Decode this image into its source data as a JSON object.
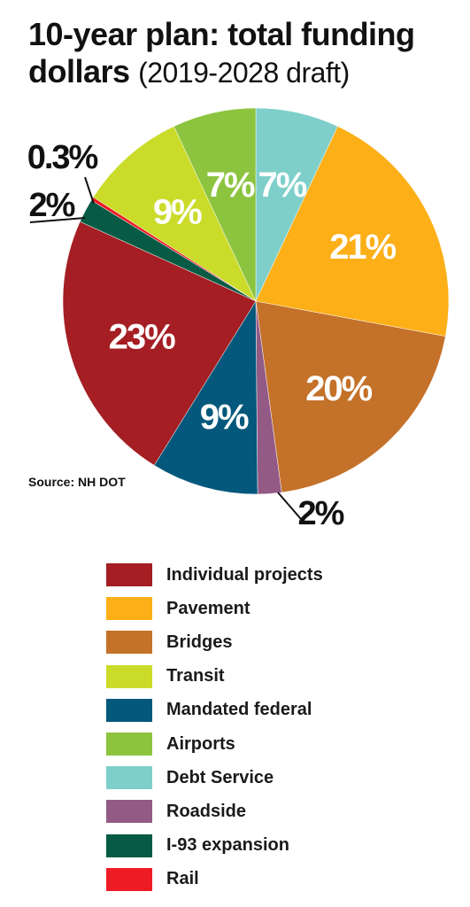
{
  "header": {
    "title_main": "10-year plan: total funding dollars",
    "title_sub": "(2019-2028 draft)"
  },
  "source": "Source: NH DOT",
  "chart_data": {
    "type": "pie",
    "title": "10-year plan: total funding dollars (2019-2028 draft)",
    "slices": [
      {
        "label": "Debt Service",
        "value": 7,
        "display": "7%",
        "color": "#7ecfca"
      },
      {
        "label": "Pavement",
        "value": 21,
        "display": "21%",
        "color": "#fcaf17"
      },
      {
        "label": "Bridges",
        "value": 20,
        "display": "20%",
        "color": "#c47129"
      },
      {
        "label": "Roadside",
        "value": 2,
        "display": "2%",
        "color": "#935a86"
      },
      {
        "label": "Mandated federal",
        "value": 9,
        "display": "9%",
        "color": "#04587c"
      },
      {
        "label": "Individual projects",
        "value": 23,
        "display": "23%",
        "color": "#a41e23"
      },
      {
        "label": "I-93 expansion",
        "value": 2,
        "display": "2%",
        "color": "#075b45"
      },
      {
        "label": "Rail",
        "value": 0.3,
        "display": "0.3%",
        "color": "#ed1c24"
      },
      {
        "label": "Transit",
        "value": 9,
        "display": "9%",
        "color": "#cbdb2a"
      },
      {
        "label": "Airports",
        "value": 7,
        "display": "7%",
        "color": "#8cc43f"
      }
    ],
    "legend": {
      "position": "bottom",
      "items": [
        {
          "label": "Individual projects",
          "color": "#a41e23"
        },
        {
          "label": "Pavement",
          "color": "#fcaf17"
        },
        {
          "label": "Bridges",
          "color": "#c47129"
        },
        {
          "label": "Transit",
          "color": "#cbdb2a"
        },
        {
          "label": "Mandated federal",
          "color": "#04587c"
        },
        {
          "label": "Airports",
          "color": "#8cc43f"
        },
        {
          "label": "Debt Service",
          "color": "#7ecfca"
        },
        {
          "label": "Roadside",
          "color": "#935a86"
        },
        {
          "label": "I-93 expansion",
          "color": "#075b45"
        },
        {
          "label": "Rail",
          "color": "#ed1c24"
        }
      ]
    }
  }
}
